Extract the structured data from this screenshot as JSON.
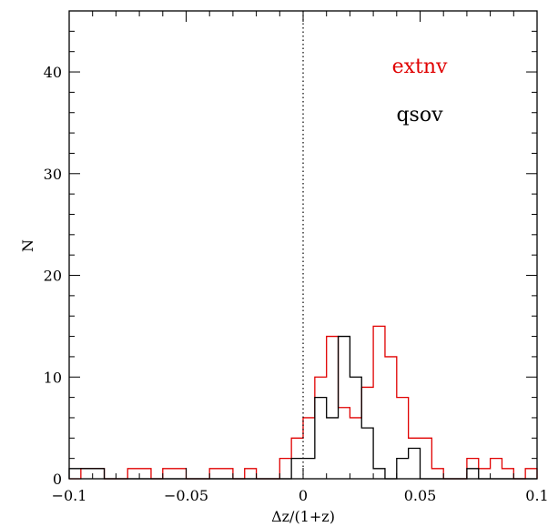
{
  "chart_data": {
    "type": "histogram",
    "xlabel": "Δz/(1+z)",
    "ylabel": "N",
    "xlim": [
      -0.1,
      0.1
    ],
    "ylim": [
      0,
      46
    ],
    "xticks": [
      -0.1,
      -0.05,
      0,
      0.05,
      0.1
    ],
    "xtick_labels": [
      "−0.1",
      "−0.05",
      "0",
      "0.05",
      "0.1"
    ],
    "yticks": [
      0,
      10,
      20,
      30,
      40
    ],
    "ytick_labels": [
      "0",
      "10",
      "20",
      "30",
      "40"
    ],
    "reference_line": {
      "x": 0,
      "style": "dotted"
    },
    "bin_width": 0.005,
    "bin_start": -0.1,
    "series": [
      {
        "name": "extnv",
        "color": "#e00000",
        "counts": [
          0,
          1,
          1,
          0,
          0,
          1,
          1,
          0,
          1,
          1,
          0,
          0,
          1,
          1,
          0,
          1,
          0,
          0,
          2,
          4,
          6,
          10,
          14,
          7,
          6,
          9,
          15,
          12,
          8,
          4,
          4,
          1,
          0,
          0,
          2,
          1,
          2,
          1,
          0,
          1
        ]
      },
      {
        "name": "qsov",
        "color": "#000000",
        "counts": [
          1,
          1,
          1,
          0,
          0,
          0,
          0,
          0,
          0,
          0,
          0,
          0,
          0,
          0,
          0,
          0,
          0,
          0,
          0,
          2,
          2,
          8,
          6,
          14,
          10,
          5,
          1,
          0,
          2,
          3,
          0,
          0,
          0,
          0,
          1,
          0,
          0,
          0,
          0,
          0
        ]
      }
    ],
    "legend": {
      "position": "top-right",
      "entries": [
        "extnv",
        "qsov"
      ]
    }
  }
}
